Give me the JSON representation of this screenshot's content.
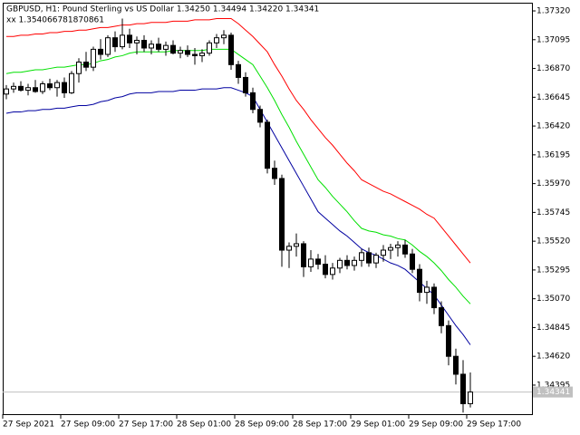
{
  "chart_data": {
    "type": "candlestick",
    "title": "GBPUSD, H1:  Pound Sterling vs US Dollar  1.34250 1.34494 1.34220 1.34341",
    "subtitle": "xx 1.354066781870861",
    "categories": [
      "27 Sep 2021",
      null,
      null,
      null,
      null,
      null,
      null,
      null,
      "27 Sep 09:00",
      null,
      null,
      null,
      null,
      null,
      null,
      null,
      "27 Sep 17:00",
      null,
      null,
      null,
      null,
      null,
      null,
      null,
      "28 Sep 01:00",
      null,
      null,
      null,
      null,
      null,
      null,
      null,
      "28 Sep 09:00",
      null,
      null,
      null,
      null,
      null,
      null,
      null,
      "28 Sep 17:00",
      null,
      null,
      null,
      null,
      null,
      null,
      null,
      "29 Sep 01:00",
      null,
      null,
      null,
      null,
      null,
      null,
      null,
      "29 Sep 09:00",
      null,
      null,
      null,
      null,
      null,
      null,
      null,
      "29 Sep 17:00"
    ],
    "open": [
      1.3667,
      1.3671,
      1.3673,
      1.367,
      1.3672,
      1.3669,
      1.3675,
      1.3672,
      1.3676,
      1.3668,
      1.3683,
      1.3692,
      1.3688,
      1.3702,
      1.3698,
      1.3711,
      1.3704,
      1.3713,
      1.3707,
      1.3709,
      1.3703,
      1.3706,
      1.3702,
      1.3705,
      1.3699,
      1.3701,
      1.3698,
      1.3697,
      1.3699,
      1.3707,
      1.3711,
      1.3713,
      1.369,
      1.368,
      1.3668,
      1.3655,
      1.3645,
      1.3609,
      1.3601,
      1.3545,
      1.3548,
      1.355,
      1.3532,
      1.3538,
      1.3534,
      1.3526,
      1.3531,
      1.3537,
      1.3533,
      1.3537,
      1.3543,
      1.3535,
      1.3541,
      1.3545,
      1.3547,
      1.3549,
      1.3542,
      1.353,
      1.3512,
      1.3516,
      1.35,
      1.3486,
      1.3462,
      1.3448,
      1.3425
    ],
    "high": [
      1.3674,
      1.3676,
      1.3677,
      1.3675,
      1.3678,
      1.3677,
      1.3679,
      1.3678,
      1.368,
      1.3685,
      1.3695,
      1.37,
      1.3704,
      1.371,
      1.3713,
      1.3716,
      1.3726,
      1.3718,
      1.3712,
      1.3713,
      1.3709,
      1.3711,
      1.3708,
      1.3709,
      1.3704,
      1.3705,
      1.3703,
      1.3702,
      1.3709,
      1.3714,
      1.3717,
      1.3715,
      1.3693,
      1.3684,
      1.3672,
      1.3658,
      1.3647,
      1.3615,
      1.3604,
      1.3551,
      1.3558,
      1.3552,
      1.3545,
      1.3542,
      1.3541,
      1.3535,
      1.3539,
      1.3541,
      1.354,
      1.3546,
      1.3547,
      1.3543,
      1.3549,
      1.355,
      1.3552,
      1.3553,
      1.3546,
      1.3534,
      1.3521,
      1.3519,
      1.3505,
      1.349,
      1.3468,
      1.3459,
      1.34494
    ],
    "low": [
      1.3663,
      1.3668,
      1.3669,
      1.3666,
      1.3668,
      1.3667,
      1.367,
      1.3665,
      1.3664,
      1.3667,
      1.3676,
      1.3685,
      1.3685,
      1.3694,
      1.3696,
      1.37,
      1.3702,
      1.3703,
      1.3698,
      1.37,
      1.3698,
      1.37,
      1.3697,
      1.3698,
      1.3695,
      1.3696,
      1.369,
      1.3692,
      1.3697,
      1.3703,
      1.3706,
      1.3686,
      1.3675,
      1.3665,
      1.3652,
      1.3641,
      1.3605,
      1.3596,
      1.3532,
      1.3531,
      1.354,
      1.3524,
      1.3528,
      1.353,
      1.3523,
      1.3522,
      1.3527,
      1.353,
      1.3529,
      1.3532,
      1.3532,
      1.3531,
      1.3536,
      1.3538,
      1.354,
      1.3539,
      1.3527,
      1.3505,
      1.3503,
      1.3495,
      1.348,
      1.3455,
      1.344,
      1.3418,
      1.3422
    ],
    "close": [
      1.3671,
      1.3673,
      1.367,
      1.3672,
      1.3669,
      1.3675,
      1.3672,
      1.3676,
      1.3668,
      1.3683,
      1.3692,
      1.3688,
      1.3702,
      1.3698,
      1.3711,
      1.3704,
      1.3713,
      1.3707,
      1.3709,
      1.3703,
      1.3706,
      1.3702,
      1.3705,
      1.3699,
      1.3701,
      1.3698,
      1.3697,
      1.3699,
      1.3707,
      1.3711,
      1.3713,
      1.369,
      1.368,
      1.3668,
      1.3655,
      1.3645,
      1.3609,
      1.3601,
      1.3545,
      1.3548,
      1.355,
      1.3532,
      1.3538,
      1.3534,
      1.3526,
      1.3531,
      1.3537,
      1.3533,
      1.3537,
      1.3543,
      1.3535,
      1.3541,
      1.3545,
      1.3547,
      1.3549,
      1.3542,
      1.353,
      1.3512,
      1.3516,
      1.35,
      1.3486,
      1.3462,
      1.3448,
      1.3425,
      1.34341
    ],
    "series": [
      {
        "color": "#ff0000",
        "values": [
          1.3712,
          1.3712,
          1.3713,
          1.3713,
          1.3714,
          1.3714,
          1.3715,
          1.3715,
          1.3716,
          1.3716,
          1.3717,
          1.3717,
          1.3718,
          1.3719,
          1.3719,
          1.372,
          1.3721,
          1.3721,
          1.3722,
          1.3722,
          1.3723,
          1.3723,
          1.3723,
          1.3724,
          1.3724,
          1.3724,
          1.3725,
          1.3725,
          1.3725,
          1.3726,
          1.3726,
          1.3726,
          1.3722,
          1.3717,
          1.3712,
          1.3706,
          1.37,
          1.369,
          1.3681,
          1.3671,
          1.3662,
          1.3655,
          1.3647,
          1.364,
          1.3633,
          1.3627,
          1.362,
          1.3613,
          1.3607,
          1.36,
          1.3597,
          1.3594,
          1.3591,
          1.3589,
          1.3586,
          1.3583,
          1.358,
          1.3577,
          1.3573,
          1.357,
          1.3563,
          1.3556,
          1.3549,
          1.3542,
          1.3535
        ]
      },
      {
        "color": "#00e000",
        "values": [
          1.3683,
          1.3684,
          1.3684,
          1.3685,
          1.3686,
          1.3686,
          1.3687,
          1.3688,
          1.3688,
          1.3689,
          1.369,
          1.369,
          1.3691,
          1.3693,
          1.3694,
          1.3696,
          1.3697,
          1.3699,
          1.37,
          1.37,
          1.37,
          1.37,
          1.37,
          1.3701,
          1.3701,
          1.3701,
          1.3701,
          1.3701,
          1.3702,
          1.3702,
          1.3702,
          1.3702,
          1.3698,
          1.3694,
          1.369,
          1.3681,
          1.3672,
          1.3662,
          1.3651,
          1.3641,
          1.363,
          1.362,
          1.361,
          1.36,
          1.3594,
          1.3587,
          1.3581,
          1.3575,
          1.3568,
          1.3562,
          1.356,
          1.3559,
          1.3557,
          1.3556,
          1.3554,
          1.3553,
          1.3549,
          1.3544,
          1.354,
          1.3535,
          1.3529,
          1.3522,
          1.3516,
          1.3509,
          1.3503
        ]
      },
      {
        "color": "#0000a0",
        "values": [
          1.3652,
          1.3653,
          1.3653,
          1.3654,
          1.3654,
          1.3655,
          1.3655,
          1.3656,
          1.3656,
          1.3657,
          1.3658,
          1.3658,
          1.3659,
          1.3661,
          1.3662,
          1.3664,
          1.3665,
          1.3667,
          1.3668,
          1.3668,
          1.3668,
          1.3669,
          1.3669,
          1.3669,
          1.367,
          1.367,
          1.367,
          1.3671,
          1.3671,
          1.3671,
          1.3672,
          1.3672,
          1.367,
          1.3668,
          1.3665,
          1.3655,
          1.3645,
          1.3635,
          1.3625,
          1.3615,
          1.3605,
          1.3595,
          1.3585,
          1.3575,
          1.357,
          1.3565,
          1.356,
          1.3556,
          1.3551,
          1.3546,
          1.3543,
          1.3541,
          1.3538,
          1.3535,
          1.3533,
          1.353,
          1.3525,
          1.352,
          1.3515,
          1.351,
          1.3502,
          1.3494,
          1.3486,
          1.3479,
          1.3471
        ]
      }
    ],
    "current_price": 1.34341,
    "ylim": [
      1.34168,
      1.37384
    ],
    "yticks": [
      {
        "value": 1.3732,
        "label": "1.37320"
      },
      {
        "value": 1.37095,
        "label": "1.37095"
      },
      {
        "value": 1.3687,
        "label": "1.36870"
      },
      {
        "value": 1.36645,
        "label": "1.36645"
      },
      {
        "value": 1.3642,
        "label": "1.36420"
      },
      {
        "value": 1.36195,
        "label": "1.36195"
      },
      {
        "value": 1.3597,
        "label": "1.35970"
      },
      {
        "value": 1.35745,
        "label": "1.35745"
      },
      {
        "value": 1.3552,
        "label": "1.35520"
      },
      {
        "value": 1.35295,
        "label": "1.35295"
      },
      {
        "value": 1.3507,
        "label": "1.35070"
      },
      {
        "value": 1.34845,
        "label": "1.34845"
      },
      {
        "value": 1.3462,
        "label": "1.34620"
      },
      {
        "value": 1.34395,
        "label": "1.34395"
      }
    ]
  }
}
